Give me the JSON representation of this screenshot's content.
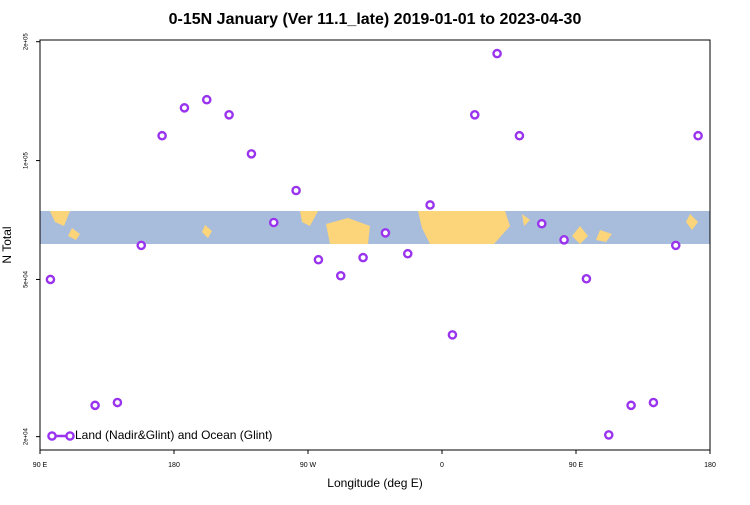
{
  "chart_data": {
    "type": "scatter",
    "title": "0-15N January (Ver 11.1_late)   2019-01-01 to 2023-04-30",
    "x_label": "Longitude (deg E)",
    "y_label": "N Total",
    "log_y": true,
    "xlim": [
      90,
      540
    ],
    "xticks": [
      {
        "value": 90,
        "label": "90 E"
      },
      {
        "value": 180,
        "label": "180"
      },
      {
        "value": 270,
        "label": "90 W"
      },
      {
        "value": 360,
        "label": "0"
      },
      {
        "value": 450,
        "label": "90 E"
      },
      {
        "value": 540,
        "label": "180"
      }
    ],
    "ylim": [
      18500,
      202000
    ],
    "yticks": [
      {
        "value": 20000,
        "label": "2e+04"
      },
      {
        "value": 50000,
        "label": "5e+04"
      },
      {
        "value": 100000,
        "label": "1e+05"
      },
      {
        "value": 200000,
        "label": "2e+05"
      }
    ],
    "legend_position": "bottom-left",
    "series": [
      {
        "name": "Land (Nadir&Glint) and Ocean (Glint)",
        "color": "#9933ee",
        "x": [
          97,
          127,
          142,
          158,
          172,
          187,
          202,
          217,
          232,
          247,
          262,
          277,
          292,
          307,
          322,
          337,
          352,
          367,
          382,
          397,
          412,
          427,
          442,
          457,
          472,
          487,
          502,
          517,
          532
        ],
        "values": [
          50000,
          24000,
          24400,
          61000,
          115600,
          136000,
          142600,
          130600,
          104000,
          69700,
          84000,
          56100,
          51100,
          56800,
          65600,
          58100,
          77200,
          36200,
          130600,
          186600,
          115600,
          69200,
          63000,
          50200,
          20200,
          24000,
          24400,
          61000,
          115600
        ]
      }
    ]
  }
}
